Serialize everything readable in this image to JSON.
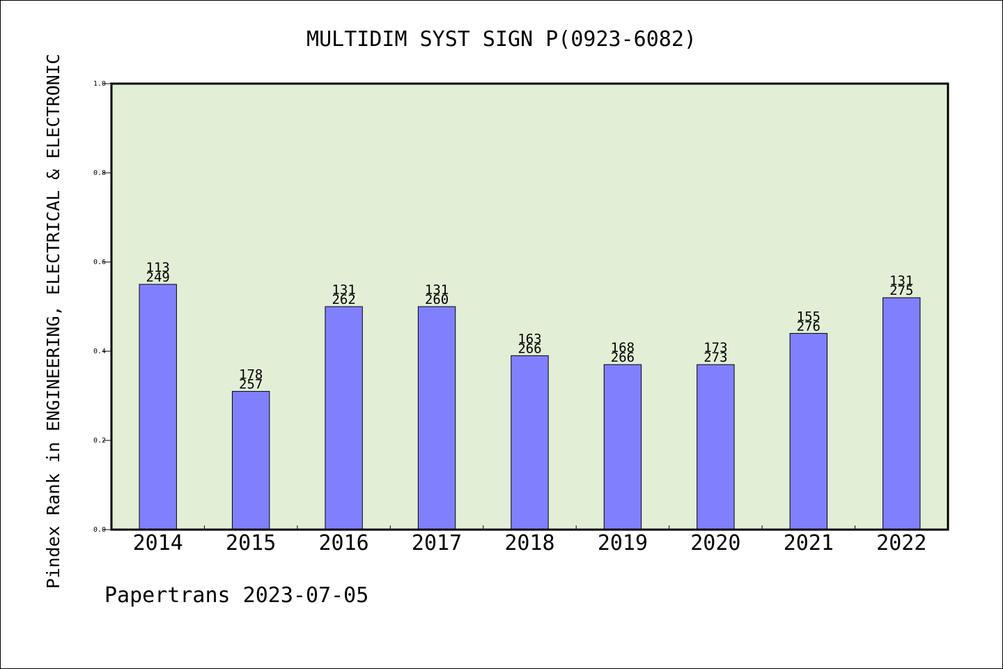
{
  "footer": "Papertrans 2023-07-05",
  "chart_data": {
    "type": "bar",
    "title": "MULTIDIM SYST SIGN P(0923-6082)",
    "xlabel": "",
    "ylabel": "Pindex Rank in ENGINEERING, ELECTRICAL & ELECTRONIC",
    "ylim": [
      0,
      1.0
    ],
    "yticks": [
      "0.0",
      "0.2",
      "0.4",
      "0.6",
      "0.8",
      "1.0"
    ],
    "grid": false,
    "categories": [
      "2014",
      "2015",
      "2016",
      "2017",
      "2018",
      "2019",
      "2020",
      "2021",
      "2022"
    ],
    "values": [
      0.55,
      0.31,
      0.5,
      0.5,
      0.39,
      0.37,
      0.37,
      0.44,
      0.52
    ],
    "label_top": [
      "113",
      "178",
      "131",
      "131",
      "163",
      "168",
      "173",
      "155",
      "131"
    ],
    "label_bottom": [
      "249",
      "257",
      "262",
      "260",
      "266",
      "266",
      "273",
      "276",
      "275"
    ],
    "colors": {
      "plot_background": "#e2efd6",
      "bar_fill": "#8080ff",
      "bar_stroke": "#000000"
    }
  }
}
